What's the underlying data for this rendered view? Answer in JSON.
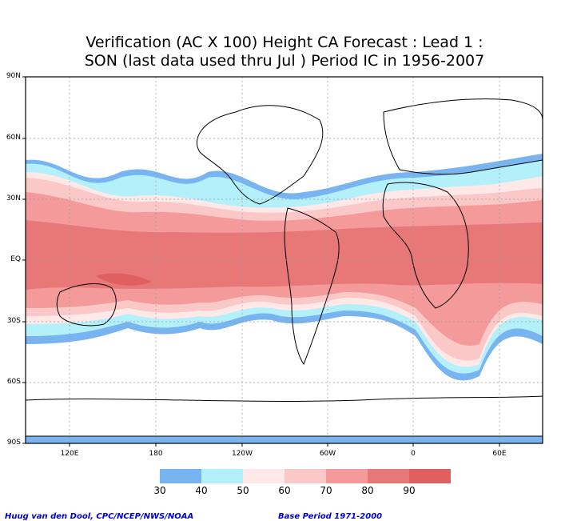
{
  "title": {
    "line1": "Verification (AC X 100) Height CA Forecast : Lead 1 :",
    "line2": "SON (last data used thru Jul ) Period IC in 1956-2007"
  },
  "map": {
    "lat_labels": [
      "90N",
      "60N",
      "30N",
      "EQ",
      "30S",
      "60S",
      "90S"
    ],
    "lon_labels": [
      "120E",
      "180",
      "120W",
      "60W",
      "0",
      "60E"
    ]
  },
  "legend": {
    "labels": [
      "30",
      "40",
      "50",
      "60",
      "70",
      "80",
      "90"
    ],
    "colors": [
      "#78b4f0",
      "#b4f0fa",
      "#ffe8e8",
      "#fbc8c8",
      "#f49a9a",
      "#e87878",
      "#e06060"
    ]
  },
  "credits": {
    "left": "Huug van den Dool, CPC/NCEP/NWS/NOAA",
    "right": "Base Period 1971-2000"
  }
}
